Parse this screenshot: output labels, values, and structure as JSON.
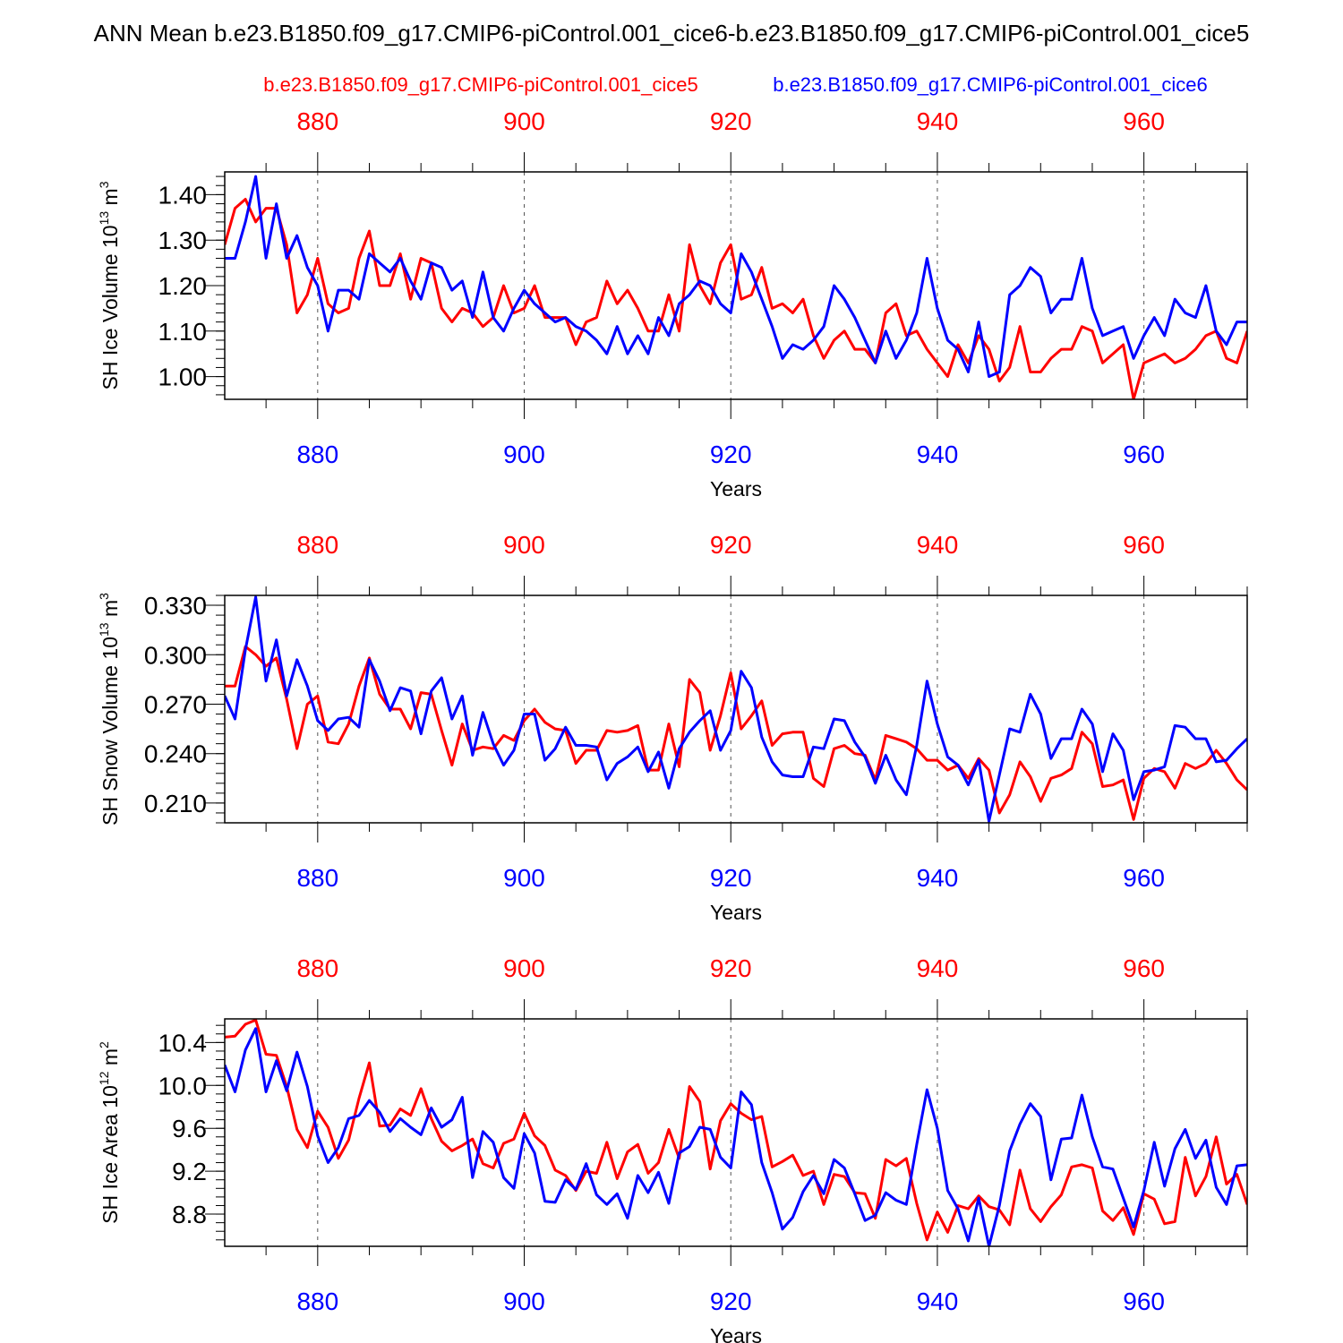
{
  "title": "ANN Mean b.e23.B1850.f09_g17.CMIP6-piControl.001_cice6-b.e23.B1850.f09_g17.CMIP6-piControl.001_cice5",
  "legend": {
    "red_label": "b.e23.B1850.f09_g17.CMIP6-piControl.001_cice5",
    "blue_label": "b.e23.B1850.f09_g17.CMIP6-piControl.001_cice6"
  },
  "colors": {
    "red": "#ff0000",
    "blue": "#0000ff",
    "axis": "#000000"
  },
  "chart_data": [
    {
      "type": "line",
      "ylabel": "SH Ice Volume 10",
      "ylabel_exp": "13",
      "ylabel_unit": " m",
      "ylabel_unit_exp": "3",
      "xlabel": "Years",
      "xlim": [
        871,
        970
      ],
      "ylim": [
        0.95,
        1.45
      ],
      "x_ticks": [
        880,
        900,
        920,
        940,
        960
      ],
      "y_ticks": [
        1.0,
        1.1,
        1.2,
        1.3,
        1.4
      ],
      "y_tick_labels": [
        "1.00",
        "1.10",
        "1.20",
        "1.30",
        "1.40"
      ],
      "y_minor_step": 0.02,
      "x_start": 871,
      "series": [
        {
          "color": "red",
          "values": [
            1.29,
            1.37,
            1.39,
            1.34,
            1.37,
            1.37,
            1.29,
            1.14,
            1.18,
            1.26,
            1.16,
            1.14,
            1.15,
            1.26,
            1.32,
            1.2,
            1.2,
            1.27,
            1.17,
            1.26,
            1.25,
            1.15,
            1.12,
            1.15,
            1.14,
            1.11,
            1.13,
            1.2,
            1.14,
            1.15,
            1.2,
            1.13,
            1.13,
            1.13,
            1.07,
            1.12,
            1.13,
            1.21,
            1.16,
            1.19,
            1.15,
            1.1,
            1.1,
            1.18,
            1.1,
            1.29,
            1.2,
            1.16,
            1.25,
            1.29,
            1.17,
            1.18,
            1.24,
            1.15,
            1.16,
            1.14,
            1.17,
            1.09,
            1.04,
            1.08,
            1.1,
            1.06,
            1.06,
            1.03,
            1.14,
            1.16,
            1.09,
            1.1,
            1.06,
            1.03,
            1.0,
            1.07,
            1.03,
            1.09,
            1.06,
            0.99,
            1.02,
            1.11,
            1.01,
            1.01,
            1.04,
            1.06,
            1.06,
            1.11,
            1.1,
            1.03,
            1.05,
            1.07,
            0.95,
            1.03,
            1.04,
            1.05,
            1.03,
            1.04,
            1.06,
            1.09,
            1.1,
            1.04,
            1.03,
            1.1
          ]
        },
        {
          "color": "blue",
          "values": [
            1.26,
            1.26,
            1.34,
            1.44,
            1.26,
            1.38,
            1.26,
            1.31,
            1.24,
            1.2,
            1.1,
            1.19,
            1.19,
            1.17,
            1.27,
            1.25,
            1.23,
            1.26,
            1.21,
            1.17,
            1.25,
            1.24,
            1.19,
            1.21,
            1.13,
            1.23,
            1.13,
            1.1,
            1.15,
            1.19,
            1.16,
            1.14,
            1.12,
            1.13,
            1.11,
            1.1,
            1.08,
            1.05,
            1.11,
            1.05,
            1.09,
            1.05,
            1.13,
            1.09,
            1.16,
            1.18,
            1.21,
            1.2,
            1.16,
            1.14,
            1.27,
            1.23,
            1.17,
            1.11,
            1.04,
            1.07,
            1.06,
            1.08,
            1.11,
            1.2,
            1.17,
            1.13,
            1.08,
            1.03,
            1.1,
            1.04,
            1.08,
            1.14,
            1.26,
            1.15,
            1.08,
            1.06,
            1.01,
            1.12,
            1.0,
            1.01,
            1.18,
            1.2,
            1.24,
            1.22,
            1.14,
            1.17,
            1.17,
            1.26,
            1.15,
            1.09,
            1.1,
            1.11,
            1.04,
            1.09,
            1.13,
            1.09,
            1.17,
            1.14,
            1.13,
            1.2,
            1.1,
            1.07,
            1.12,
            1.12
          ]
        }
      ]
    },
    {
      "type": "line",
      "ylabel": "SH Snow Volume 10",
      "ylabel_exp": "13",
      "ylabel_unit": " m",
      "ylabel_unit_exp": "3",
      "xlabel": "Years",
      "xlim": [
        871,
        970
      ],
      "ylim": [
        0.198,
        0.336
      ],
      "x_ticks": [
        880,
        900,
        920,
        940,
        960
      ],
      "y_ticks": [
        0.21,
        0.24,
        0.27,
        0.3,
        0.33
      ],
      "y_tick_labels": [
        "0.210",
        "0.240",
        "0.270",
        "0.300",
        "0.330"
      ],
      "y_minor_step": 0.006,
      "x_start": 871,
      "series": [
        {
          "color": "red",
          "values": [
            0.281,
            0.281,
            0.305,
            0.3,
            0.293,
            0.298,
            0.273,
            0.243,
            0.27,
            0.275,
            0.247,
            0.246,
            0.258,
            0.281,
            0.298,
            0.276,
            0.267,
            0.267,
            0.255,
            0.277,
            0.276,
            0.254,
            0.233,
            0.258,
            0.242,
            0.244,
            0.243,
            0.251,
            0.248,
            0.26,
            0.267,
            0.259,
            0.255,
            0.254,
            0.234,
            0.242,
            0.242,
            0.254,
            0.253,
            0.254,
            0.257,
            0.23,
            0.23,
            0.258,
            0.232,
            0.285,
            0.277,
            0.242,
            0.263,
            0.289,
            0.255,
            0.263,
            0.272,
            0.245,
            0.252,
            0.253,
            0.253,
            0.225,
            0.22,
            0.243,
            0.245,
            0.24,
            0.239,
            0.224,
            0.251,
            0.249,
            0.247,
            0.243,
            0.236,
            0.236,
            0.23,
            0.233,
            0.225,
            0.237,
            0.23,
            0.204,
            0.215,
            0.235,
            0.226,
            0.211,
            0.225,
            0.227,
            0.231,
            0.253,
            0.246,
            0.22,
            0.221,
            0.224,
            0.2,
            0.225,
            0.231,
            0.229,
            0.219,
            0.234,
            0.231,
            0.234,
            0.242,
            0.234,
            0.224,
            0.218
          ]
        },
        {
          "color": "blue",
          "values": [
            0.275,
            0.261,
            0.303,
            0.335,
            0.284,
            0.309,
            0.275,
            0.297,
            0.281,
            0.26,
            0.254,
            0.261,
            0.262,
            0.256,
            0.297,
            0.284,
            0.266,
            0.28,
            0.278,
            0.252,
            0.278,
            0.286,
            0.261,
            0.275,
            0.239,
            0.265,
            0.246,
            0.233,
            0.242,
            0.264,
            0.264,
            0.236,
            0.243,
            0.256,
            0.245,
            0.245,
            0.244,
            0.224,
            0.234,
            0.238,
            0.244,
            0.229,
            0.241,
            0.219,
            0.243,
            0.253,
            0.26,
            0.266,
            0.242,
            0.254,
            0.29,
            0.28,
            0.25,
            0.235,
            0.227,
            0.226,
            0.226,
            0.244,
            0.243,
            0.261,
            0.26,
            0.247,
            0.238,
            0.222,
            0.239,
            0.224,
            0.215,
            0.245,
            0.284,
            0.258,
            0.238,
            0.233,
            0.221,
            0.236,
            0.199,
            0.227,
            0.255,
            0.253,
            0.276,
            0.264,
            0.237,
            0.249,
            0.249,
            0.267,
            0.258,
            0.229,
            0.252,
            0.242,
            0.212,
            0.229,
            0.23,
            0.232,
            0.257,
            0.256,
            0.249,
            0.249,
            0.235,
            0.236,
            0.243,
            0.249
          ]
        }
      ]
    },
    {
      "type": "line",
      "ylabel": "SH Ice Area 10",
      "ylabel_exp": "12",
      "ylabel_unit": " m",
      "ylabel_unit_exp": "2",
      "xlabel": "Years",
      "xlim": [
        871,
        970
      ],
      "ylim": [
        8.5,
        10.62
      ],
      "x_ticks": [
        880,
        900,
        920,
        940,
        960
      ],
      "y_ticks": [
        8.8,
        9.2,
        9.6,
        10.0,
        10.4
      ],
      "y_tick_labels": [
        "8.8",
        "9.2",
        "9.6",
        "10.0",
        "10.4"
      ],
      "y_minor_step": 0.08,
      "x_start": 871,
      "series": [
        {
          "color": "red",
          "values": [
            10.45,
            10.46,
            10.57,
            10.61,
            10.29,
            10.28,
            9.99,
            9.59,
            9.42,
            9.76,
            9.61,
            9.32,
            9.49,
            9.88,
            10.21,
            9.62,
            9.63,
            9.78,
            9.72,
            9.97,
            9.69,
            9.48,
            9.39,
            9.44,
            9.5,
            9.27,
            9.23,
            9.46,
            9.5,
            9.74,
            9.53,
            9.44,
            9.21,
            9.16,
            9.02,
            9.2,
            9.18,
            9.47,
            9.13,
            9.38,
            9.45,
            9.18,
            9.28,
            9.59,
            9.32,
            9.99,
            9.85,
            9.22,
            9.67,
            9.83,
            9.74,
            9.68,
            9.71,
            9.24,
            9.29,
            9.35,
            9.16,
            9.2,
            8.89,
            9.17,
            9.15,
            9.0,
            8.99,
            8.76,
            9.31,
            9.25,
            9.32,
            8.9,
            8.56,
            8.82,
            8.63,
            8.88,
            8.85,
            8.97,
            8.87,
            8.84,
            8.7,
            9.21,
            8.85,
            8.73,
            8.87,
            8.98,
            9.24,
            9.26,
            9.23,
            8.83,
            8.74,
            8.86,
            8.61,
            8.99,
            8.94,
            8.71,
            8.73,
            9.33,
            8.97,
            9.15,
            9.52,
            9.08,
            9.17,
            8.89
          ]
        },
        {
          "color": "blue",
          "values": [
            10.19,
            9.94,
            10.33,
            10.53,
            9.94,
            10.23,
            9.95,
            10.31,
            9.99,
            9.53,
            9.28,
            9.42,
            9.69,
            9.72,
            9.86,
            9.75,
            9.57,
            9.69,
            9.61,
            9.54,
            9.79,
            9.61,
            9.68,
            9.89,
            9.14,
            9.57,
            9.47,
            9.14,
            9.04,
            9.55,
            9.37,
            8.92,
            8.91,
            9.12,
            9.03,
            9.27,
            8.98,
            8.89,
            8.99,
            8.76,
            9.16,
            9.0,
            9.19,
            8.9,
            9.37,
            9.43,
            9.61,
            9.59,
            9.33,
            9.23,
            9.94,
            9.82,
            9.28,
            9.0,
            8.66,
            8.77,
            9.01,
            9.16,
            8.99,
            9.31,
            9.23,
            8.99,
            8.74,
            8.79,
            9.0,
            8.93,
            8.89,
            9.45,
            9.96,
            9.6,
            9.02,
            8.85,
            8.55,
            8.95,
            8.5,
            8.88,
            9.39,
            9.64,
            9.83,
            9.71,
            9.12,
            9.5,
            9.51,
            9.91,
            9.52,
            9.24,
            9.22,
            8.95,
            8.68,
            9.02,
            9.47,
            9.06,
            9.41,
            9.59,
            9.32,
            9.49,
            9.05,
            8.89,
            9.25,
            9.26
          ]
        }
      ]
    }
  ]
}
